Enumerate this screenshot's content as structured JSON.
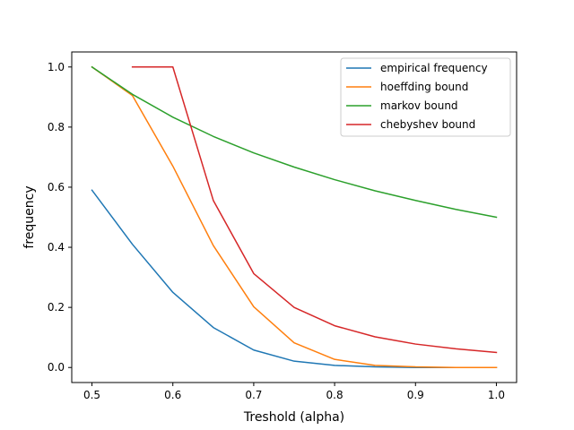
{
  "chart_data": {
    "type": "line",
    "xlabel": "Treshold (alpha)",
    "ylabel": "frequency",
    "xlim": [
      0.475,
      1.025
    ],
    "ylim": [
      -0.05,
      1.05
    ],
    "xticks": [
      0.5,
      0.6,
      0.7,
      0.8,
      0.9,
      1.0
    ],
    "xtick_labels": [
      "0.5",
      "0.6",
      "0.7",
      "0.8",
      "0.9",
      "1.0"
    ],
    "yticks": [
      0.0,
      0.2,
      0.4,
      0.6,
      0.8,
      1.0
    ],
    "ytick_labels": [
      "0.0",
      "0.2",
      "0.4",
      "0.6",
      "0.8",
      "1.0"
    ],
    "grid": false,
    "legend_position": "top-right",
    "series": [
      {
        "name": "empirical frequency",
        "color": "#1f77b4",
        "x": [
          0.5,
          0.55,
          0.6,
          0.65,
          0.7,
          0.75,
          0.8,
          0.85,
          0.9,
          0.95,
          1.0
        ],
        "y": [
          0.59,
          0.41,
          0.25,
          0.133,
          0.058,
          0.021,
          0.007,
          0.002,
          0.0,
          0.0,
          0.0
        ]
      },
      {
        "name": "hoeffding bound",
        "color": "#ff7f0e",
        "x": [
          0.5,
          0.55,
          0.6,
          0.65,
          0.7,
          0.75,
          0.8,
          0.85,
          0.9,
          0.95,
          1.0
        ],
        "y": [
          1.0,
          0.905,
          0.67,
          0.406,
          0.202,
          0.082,
          0.027,
          0.007,
          0.002,
          0.0,
          0.0
        ]
      },
      {
        "name": "markov bound",
        "color": "#2ca02c",
        "x": [
          0.5,
          0.55,
          0.6,
          0.65,
          0.7,
          0.75,
          0.8,
          0.85,
          0.9,
          0.95,
          1.0
        ],
        "y": [
          1.0,
          0.909,
          0.833,
          0.769,
          0.714,
          0.667,
          0.625,
          0.588,
          0.556,
          0.526,
          0.5
        ]
      },
      {
        "name": "chebyshev bound",
        "color": "#d62728",
        "x": [
          0.55,
          0.6,
          0.65,
          0.7,
          0.75,
          0.8,
          0.85,
          0.9,
          0.95,
          1.0
        ],
        "y": [
          1.0,
          1.0,
          0.556,
          0.3125,
          0.2,
          0.139,
          0.102,
          0.078,
          0.062,
          0.05
        ]
      }
    ]
  }
}
